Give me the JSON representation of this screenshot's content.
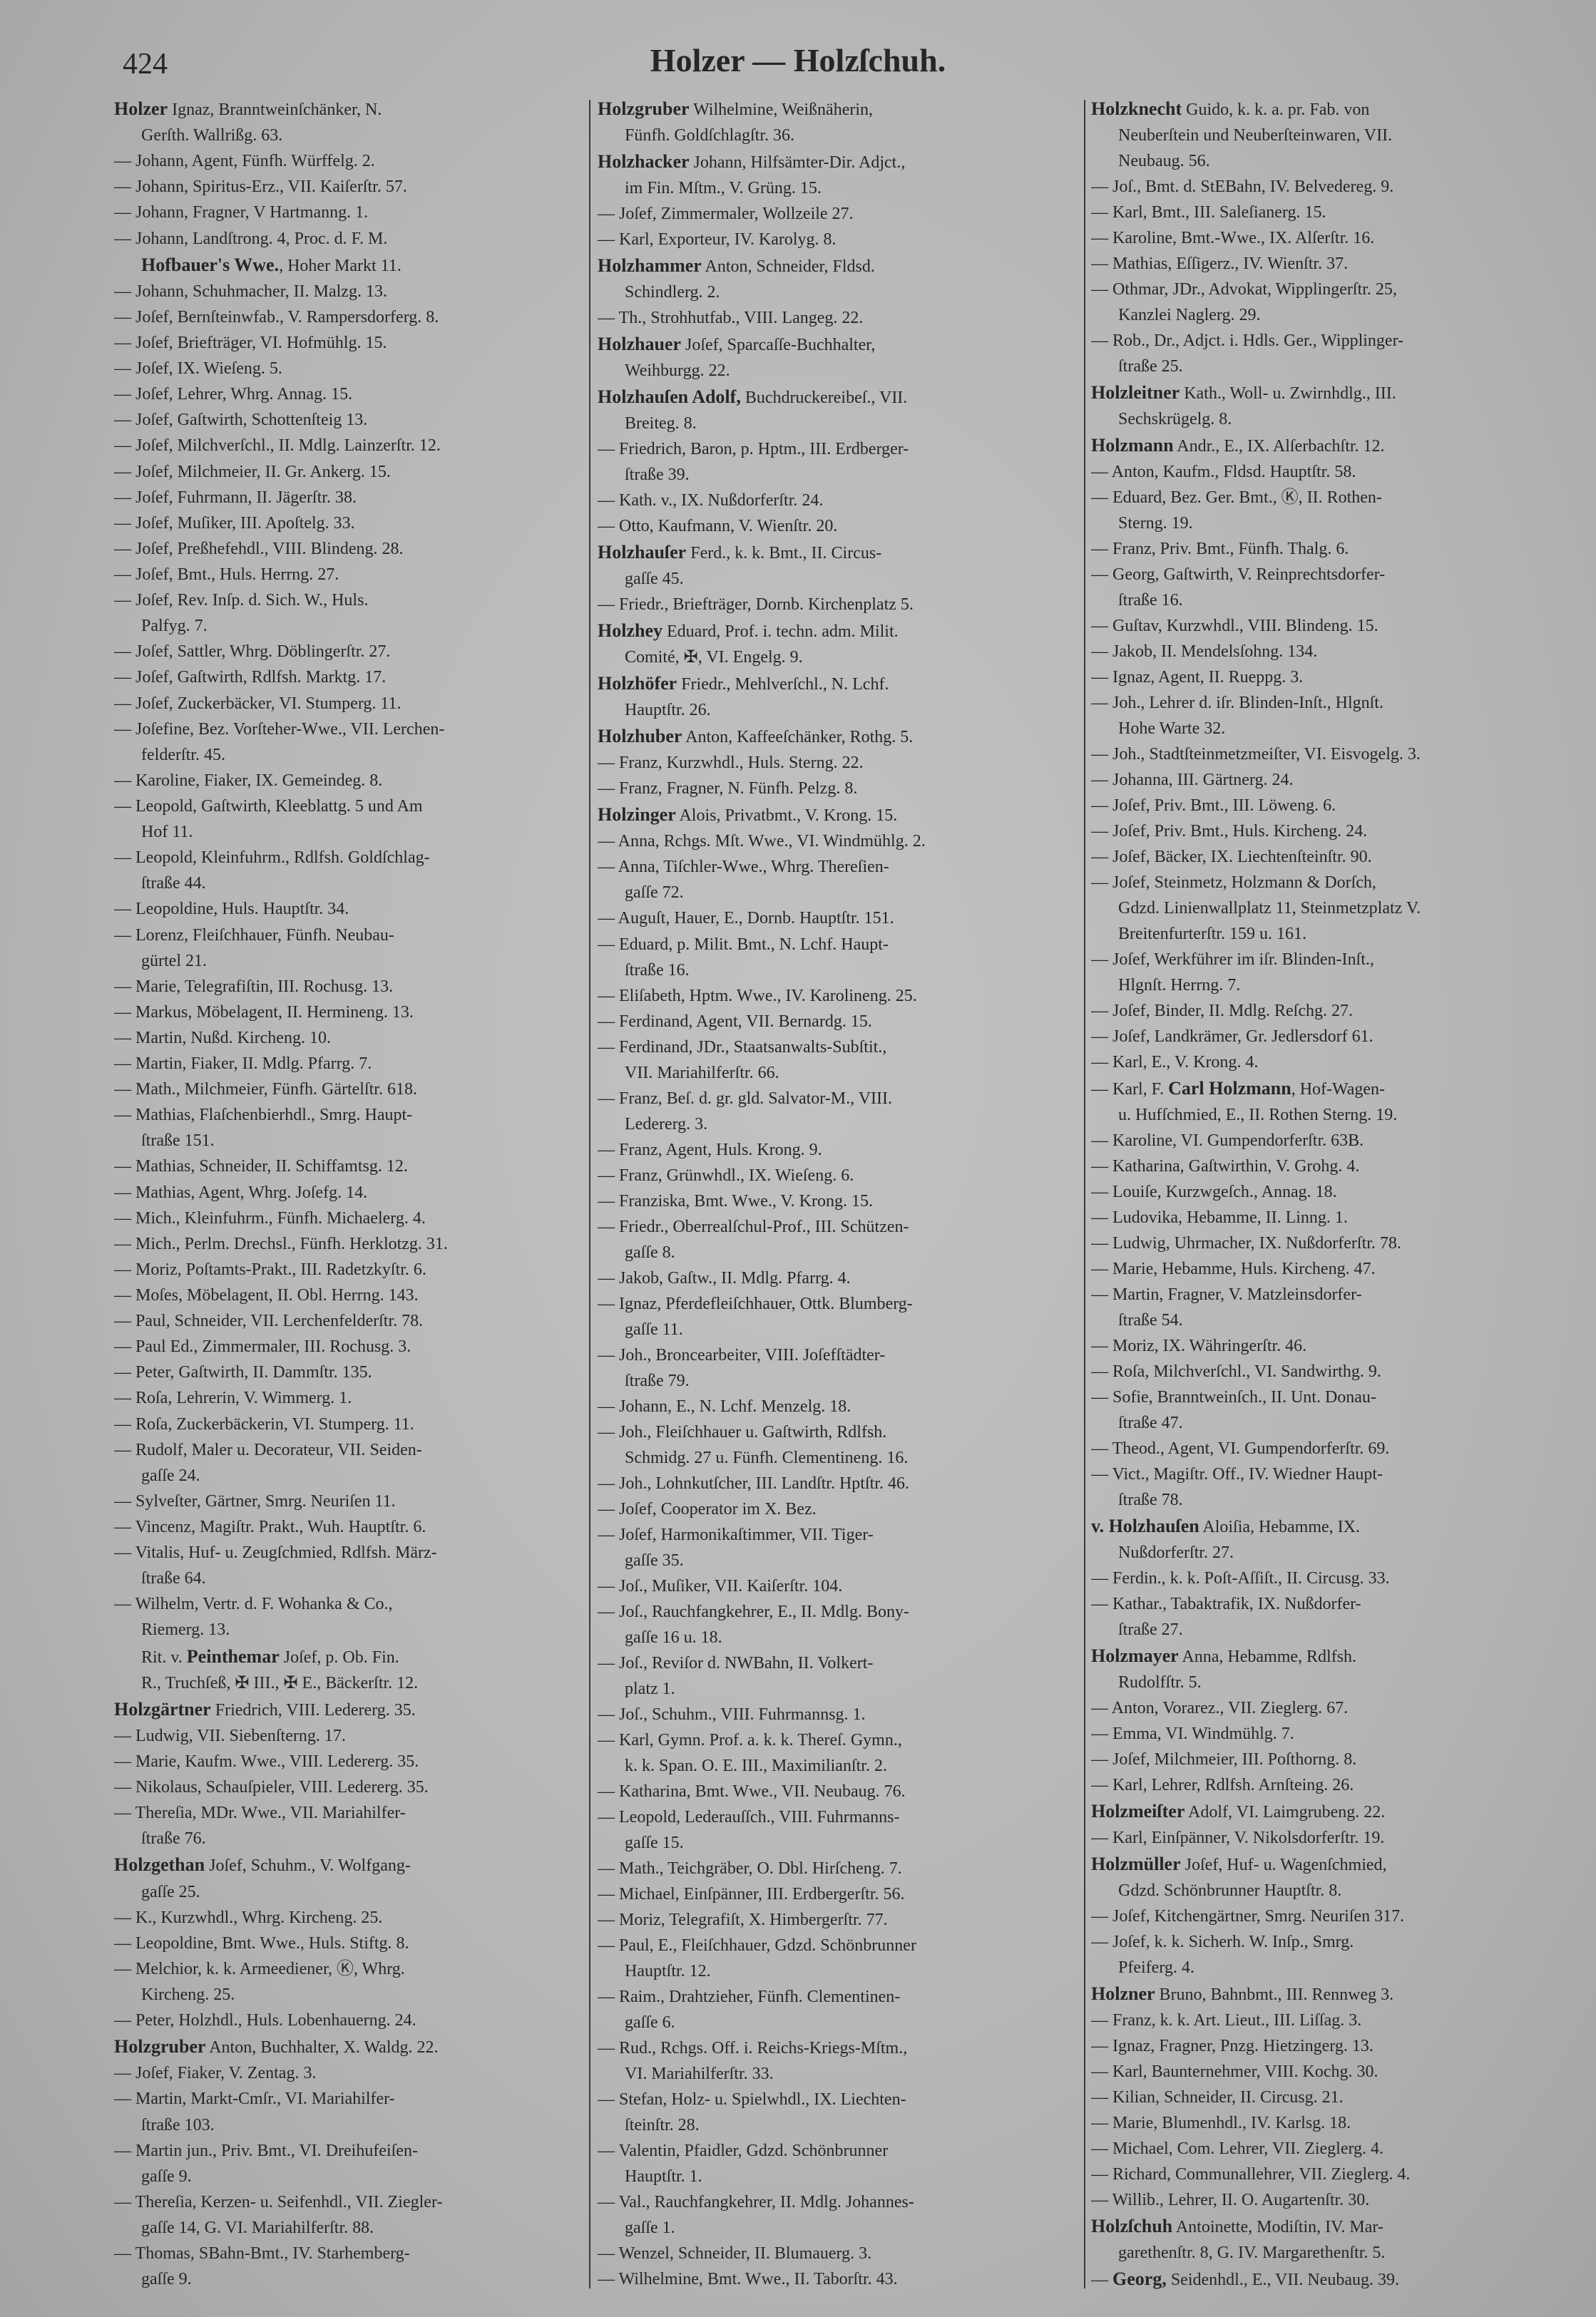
{
  "header": {
    "page_number": "424",
    "title": "Holzer — Holzſchuh."
  },
  "columns": [
    [
      {
        "n": "Holzer",
        "t": " Ignaz, Branntweinſchänker, N."
      },
      "Gerſth. Wallrißg. 63.",
      "— Johann, Agent, Fünfh. Würffelg. 2.",
      "— Johann, Spiritus-Erz., VII. Kaiſerſtr. 57.",
      "— Johann, Fragner, V Hartmanng. 1.",
      "— Johann, Landſtrong. 4, Proc. d. F. M.",
      {
        "n": "Hofbauer's Wwe.",
        "t": ", Hoher Markt 11.",
        "c": true
      },
      "— Johann, Schuhmacher, II. Malzg. 13.",
      "— Joſef, Bernſteinwfab., V. Rampersdorferg. 8.",
      "— Joſef, Briefträger, VI. Hofmühlg. 15.",
      "— Joſef, IX. Wieſeng. 5.",
      "— Joſef, Lehrer, Whrg. Annag. 15.",
      "— Joſef, Gaſtwirth, Schottenſteig 13.",
      "— Joſef, Milchverſchl., II. Mdlg. Lainzerſtr. 12.",
      "— Joſef, Milchmeier, II. Gr. Ankerg. 15.",
      "— Joſef, Fuhrmann, II. Jägerſtr. 38.",
      "— Joſef, Muſiker, III. Apoſtelg. 33.",
      "— Joſef, Preßhefehdl., VIII. Blindeng. 28.",
      "— Joſef, Bmt., Huls. Herrng. 27.",
      "— Joſef, Rev. Inſp. d. Sich. W., Huls.",
      "Palfyg. 7.",
      "— Joſef, Sattler, Whrg. Döblingerſtr. 27.",
      "— Joſef, Gaſtwirth, Rdlfsh. Marktg. 17.",
      "— Joſef, Zuckerbäcker, VI. Stumperg. 11.",
      "— Joſefine, Bez. Vorſteher-Wwe., VII. Lerchen-",
      "felderſtr. 45.",
      "— Karoline, Fiaker, IX. Gemeindeg. 8.",
      "— Leopold, Gaſtwirth, Kleeblattg. 5 und Am",
      "Hof 11.",
      "— Leopold, Kleinfuhrm., Rdlfsh. Goldſchlag-",
      "ſtraße 44.",
      "— Leopoldine, Huls. Hauptſtr. 34.",
      "— Lorenz, Fleiſchhauer, Fünfh. Neubau-",
      "gürtel 21.",
      "— Marie, Telegrafiſtin, III. Rochusg. 13.",
      "— Markus, Möbelagent, II. Hermineng. 13.",
      "— Martin, Nußd. Kircheng. 10.",
      "— Martin, Fiaker, II. Mdlg. Pfarrg. 7.",
      "— Math., Milchmeier, Fünfh. Gärtelſtr. 618.",
      "— Mathias, Flaſchenbierhdl., Smrg. Haupt-",
      "ſtraße 151.",
      "— Mathias, Schneider, II. Schiffamtsg. 12.",
      "— Mathias, Agent, Whrg. Joſefg. 14.",
      "— Mich., Kleinfuhrm., Fünfh. Michaelerg. 4.",
      "— Mich., Perlm. Drechsl., Fünfh. Herklotzg. 31.",
      "— Moriz, Poſtamts-Prakt., III. Radetzkyſtr. 6.",
      "— Moſes, Möbelagent, II. Obl. Herrng. 143.",
      "— Paul, Schneider, VII. Lerchenfelderſtr. 78.",
      "— Paul Ed., Zimmermaler, III. Rochusg. 3.",
      "— Peter, Gaſtwirth, II. Dammſtr. 135.",
      "— Roſa, Lehrerin, V. Wimmerg. 1.",
      "— Roſa, Zuckerbäckerin, VI. Stumperg. 11.",
      "— Rudolf, Maler u. Decorateur, VII. Seiden-",
      "gaſſe 24.",
      "— Sylveſter, Gärtner, Smrg. Neuriſen 11.",
      "— Vincenz, Magiſtr. Prakt., Wuh. Hauptſtr. 6.",
      "— Vitalis, Huf- u. Zeugſchmied, Rdlfsh. März-",
      "ſtraße 64.",
      "— Wilhelm, Vertr. d. F. Wohanka & Co.,",
      "Riemerg. 13.",
      {
        "p": "Rit. v. ",
        "n": "Peinthemar",
        "t": " Joſef, p. Ob. Fin.",
        "c": true
      },
      "R., Truchſeß, ✠ III., ✠ E., Bäckerſtr. 12.",
      {
        "n": "Holzgärtner",
        "t": " Friedrich, VIII. Ledererg. 35."
      },
      "— Ludwig, VII. Siebenſterng. 17.",
      "— Marie, Kaufm. Wwe., VIII. Ledererg. 35.",
      "— Nikolaus, Schauſpieler, VIII. Ledererg. 35.",
      "— Thereſia, MDr. Wwe., VII. Mariahilfer-",
      "ſtraße 76.",
      {
        "n": "Holzgethan",
        "t": " Joſef, Schuhm., V. Wolfgang-"
      },
      "gaſſe 25.",
      "— K., Kurzwhdl., Whrg. Kircheng. 25.",
      "— Leopoldine, Bmt. Wwe., Huls. Stiftg. 8.",
      "— Melchior, k. k. Armeediener, Ⓚ, Whrg.",
      "Kircheng. 25.",
      "— Peter, Holzhdl., Huls. Lobenhauerng. 24.",
      {
        "n": "Holzgruber",
        "t": " Anton, Buchhalter, X. Waldg. 22."
      },
      "— Joſef, Fiaker, V. Zentag. 3.",
      "— Martin, Markt-Cmſr., VI. Mariahilfer-",
      "ſtraße 103.",
      "— Martin jun., Priv. Bmt., VI. Dreihufeiſen-",
      "gaſſe 9.",
      "— Thereſia, Kerzen- u. Seifenhdl., VII. Ziegler-",
      "gaſſe 14, G. VI. Mariahilferſtr. 88.",
      "— Thomas, SBahn-Bmt., IV. Starhemberg-",
      "gaſſe 9."
    ],
    [
      {
        "n": "Holzgruber",
        "t": " Wilhelmine, Weißnäherin,"
      },
      "Fünfh. Goldſchlagſtr. 36.",
      {
        "n": "Holzhacker",
        "t": " Johann, Hilfsämter-Dir. Adjct.,"
      },
      "im Fin. Mſtm., V. Grüng. 15.",
      "— Joſef, Zimmermaler, Wollzeile 27.",
      "— Karl, Exporteur, IV. Karolyg. 8.",
      {
        "n": "Holzhammer",
        "t": " Anton, Schneider, Fldsd."
      },
      "Schindlerg. 2.",
      "— Th., Strohhutfab., VIII. Langeg. 22.",
      {
        "n": "Holzhauer",
        "t": " Joſef, Sparcaſſe-Buchhalter,"
      },
      "Weihburgg. 22.",
      {
        "n": "Holzhauſen Adolf,",
        "t": " Buchdruckereibeſ., VII."
      },
      "Breiteg. 8.",
      "— Friedrich, Baron, p. Hptm., III. Erdberger-",
      "ſtraße 39.",
      "— Kath. v., IX. Nußdorferſtr. 24.",
      "— Otto, Kaufmann, V. Wienſtr. 20.",
      {
        "n": "Holzhauſer",
        "t": " Ferd., k. k. Bmt., II. Circus-"
      },
      "gaſſe 45.",
      "— Friedr., Briefträger, Dornb. Kirchenplatz 5.",
      {
        "n": "Holzhey",
        "t": " Eduard, Prof. i. techn. adm. Milit."
      },
      "Comité, ✠, VI. Engelg. 9.",
      {
        "n": "Holzhöfer",
        "t": " Friedr., Mehlverſchl., N. Lchf."
      },
      "Hauptſtr. 26.",
      {
        "n": "Holzhuber",
        "t": " Anton, Kaffeeſchänker, Rothg. 5."
      },
      "— Franz, Kurzwhdl., Huls. Sterng. 22.",
      "— Franz, Fragner, N. Fünfh. Pelzg. 8.",
      {
        "n": "Holzinger",
        "t": " Alois, Privatbmt., V. Krong. 15."
      },
      "— Anna, Rchgs. Mſt. Wwe., VI. Windmühlg. 2.",
      "— Anna, Tiſchler-Wwe., Whrg. Thereſien-",
      "gaſſe 72.",
      "— Auguſt, Hauer, E., Dornb. Hauptſtr. 151.",
      "— Eduard, p. Milit. Bmt., N. Lchf. Haupt-",
      "ſtraße 16.",
      "— Eliſabeth, Hptm. Wwe., IV. Karolineng. 25.",
      "— Ferdinand, Agent, VII. Bernardg. 15.",
      "— Ferdinand, JDr., Staatsanwalts-Subſtit.,",
      "VII. Mariahilferſtr. 66.",
      "— Franz, Beſ. d. gr. gld. Salvator-M., VIII.",
      "Ledererg. 3.",
      "— Franz, Agent, Huls. Krong. 9.",
      "— Franz, Grünwhdl., IX. Wieſeng. 6.",
      "— Franziska, Bmt. Wwe., V. Krong. 15.",
      "— Friedr., Oberrealſchul-Prof., III. Schützen-",
      "gaſſe 8.",
      "— Jakob, Gaſtw., II. Mdlg. Pfarrg. 4.",
      "— Ignaz, Pferdefleiſchhauer, Ottk. Blumberg-",
      "gaſſe 11.",
      "— Joh., Broncearbeiter, VIII. Joſefſtädter-",
      "ſtraße 79.",
      "— Johann, E., N. Lchf. Menzelg. 18.",
      "— Joh., Fleiſchhauer u. Gaſtwirth, Rdlfsh.",
      "Schmidg. 27 u. Fünfh. Clementineng. 16.",
      "— Joh., Lohnkutſcher, III. Landſtr. Hptſtr. 46.",
      "— Joſef, Cooperator im X. Bez.",
      "— Joſef, Harmonikaſtimmer, VII. Tiger-",
      "gaſſe 35.",
      "— Joſ., Muſiker, VII. Kaiſerſtr. 104.",
      "— Joſ., Rauchfangkehrer, E., II. Mdlg. Bony-",
      "gaſſe 16 u. 18.",
      "— Joſ., Reviſor d. NWBahn, II. Volkert-",
      "platz 1.",
      "— Joſ., Schuhm., VIII. Fuhrmannsg. 1.",
      "— Karl, Gymn. Prof. a. k. k. Thereſ. Gymn.,",
      "k. k. Span. O. E. III., Maximilianſtr. 2.",
      "— Katharina, Bmt. Wwe., VII. Neubaug. 76.",
      "— Leopold, Lederauſſch., VIII. Fuhrmanns-",
      "gaſſe 15.",
      "— Math., Teichgräber, O. Dbl. Hirſcheng. 7.",
      "— Michael, Einſpänner, III. Erdbergerſtr. 56.",
      "— Moriz, Telegrafiſt, X. Himbergerſtr. 77.",
      "— Paul, E., Fleiſchhauer, Gdzd. Schönbrunner",
      "Hauptſtr. 12.",
      "— Raim., Drahtzieher, Fünfh. Clementinen-",
      "gaſſe 6.",
      "— Rud., Rchgs. Off. i. Reichs-Kriegs-Mſtm.,",
      "VI. Mariahilferſtr. 33.",
      "— Stefan, Holz- u. Spielwhdl., IX. Liechten-",
      "ſteinſtr. 28.",
      "— Valentin, Pfaidler, Gdzd. Schönbrunner",
      "Hauptſtr. 1.",
      "— Val., Rauchfangkehrer, II. Mdlg. Johannes-",
      "gaſſe 1.",
      "— Wenzel, Schneider, II. Blumauerg. 3.",
      "— Wilhelmine, Bmt. Wwe., II. Taborſtr. 43."
    ],
    [
      {
        "n": "Holzknecht",
        "t": " Guido, k. k. a. pr. Fab. von"
      },
      "Neuberſtein und Neuberſteinwaren, VII.",
      "Neubaug. 56.",
      "— Joſ., Bmt. d. StEBahn, IV. Belvedereg. 9.",
      "— Karl, Bmt., III. Saleſianerg. 15.",
      "— Karoline, Bmt.-Wwe., IX. Alſerſtr. 16.",
      "— Mathias, Eſſigerz., IV. Wienſtr. 37.",
      "— Othmar, JDr., Advokat, Wipplingerſtr. 25,",
      "Kanzlei Naglerg. 29.",
      "— Rob., Dr., Adjct. i. Hdls. Ger., Wipplinger-",
      "ſtraße 25.",
      {
        "n": "Holzleitner",
        "t": " Kath., Woll- u. Zwirnhdlg., III."
      },
      "Sechskrügelg. 8.",
      {
        "n": "Holzmann",
        "t": " Andr., E., IX. Alſerbachſtr. 12."
      },
      "— Anton, Kaufm., Fldsd. Hauptſtr. 58.",
      "— Eduard, Bez. Ger. Bmt., Ⓚ, II. Rothen-",
      "Sterng. 19.",
      "— Franz, Priv. Bmt., Fünfh. Thalg. 6.",
      "— Georg, Gaſtwirth, V. Reinprechtsdorfer-",
      "ſtraße 16.",
      "— Guſtav, Kurzwhdl., VIII. Blindeng. 15.",
      "— Jakob, II. Mendelsſohng. 134.",
      "— Ignaz, Agent, II. Rueppg. 3.",
      "— Joh., Lehrer d. iſr. Blinden-Inſt., Hlgnſt.",
      "Hohe Warte 32.",
      "— Joh., Stadtſteinmetzmeiſter, VI. Eisvogelg. 3.",
      "— Johanna, III. Gärtnerg. 24.",
      "— Joſef, Priv. Bmt., III. Löweng. 6.",
      "— Joſef, Priv. Bmt., Huls. Kircheng. 24.",
      "— Joſef, Bäcker, IX. Liechtenſteinſtr. 90.",
      "— Joſef, Steinmetz, Holzmann & Dorſch,",
      "Gdzd. Linienwallplatz 11, Steinmetzplatz V.",
      "Breitenfurterſtr. 159 u. 161.",
      "— Joſef, Werkführer im iſr. Blinden-Inſt.,",
      "Hlgnſt. Herrng. 7.",
      "— Joſef, Binder, II. Mdlg. Reſchg. 27.",
      "— Joſef, Landkrämer, Gr. Jedlersdorf 61.",
      "— Karl, E., V. Krong. 4.",
      {
        "p": "— Karl, F. ",
        "n": "Carl Holzmann",
        "t": ", Hof-Wagen-"
      },
      "u. Hufſchmied, E., II. Rothen Sterng. 19.",
      "— Karoline, VI. Gumpendorferſtr. 63B.",
      "— Katharina, Gaſtwirthin, V. Grohg. 4.",
      "— Louiſe, Kurzwgeſch., Annag. 18.",
      "— Ludovika, Hebamme, II. Linng. 1.",
      "— Ludwig, Uhrmacher, IX. Nußdorferſtr. 78.",
      "— Marie, Hebamme, Huls. Kircheng. 47.",
      "— Martin, Fragner, V. Matzleinsdorfer-",
      "ſtraße 54.",
      "— Moriz, IX. Währingerſtr. 46.",
      "— Roſa, Milchverſchl., VI. Sandwirthg. 9.",
      "— Sofie, Branntweinſch., II. Unt. Donau-",
      "ſtraße 47.",
      "— Theod., Agent, VI. Gumpendorferſtr. 69.",
      "— Vict., Magiſtr. Off., IV. Wiedner Haupt-",
      "ſtraße 78.",
      {
        "n": "v. Holzhauſen",
        "t": " Aloiſia, Hebamme, IX."
      },
      "Nußdorferſtr. 27.",
      "— Ferdin., k. k. Poſt-Aſſiſt., II. Circusg. 33.",
      "— Kathar., Tabaktrafik, IX. Nußdorfer-",
      "ſtraße 27.",
      {
        "n": "Holzmayer",
        "t": " Anna, Hebamme, Rdlfsh."
      },
      "Rudolfſtr. 5.",
      "— Anton, Vorarez., VII. Zieglerg. 67.",
      "— Emma, VI. Windmühlg. 7.",
      "— Joſef, Milchmeier, III. Poſthorng. 8.",
      "— Karl, Lehrer, Rdlfsh. Arnſteing. 26.",
      {
        "n": "Holzmeiſter",
        "t": " Adolf, VI. Laimgrubeng. 22."
      },
      "— Karl, Einſpänner, V. Nikolsdorferſtr. 19.",
      {
        "n": "Holzmüller",
        "t": " Joſef, Huf- u. Wagenſchmied,"
      },
      "Gdzd. Schönbrunner Hauptſtr. 8.",
      "— Joſef, Kitchengärtner, Smrg. Neuriſen 317.",
      "— Joſef, k. k. Sicherh. W. Inſp., Smrg.",
      "Pfeiferg. 4.",
      {
        "n": "Holzner",
        "t": " Bruno, Bahnbmt., III. Rennweg 3."
      },
      "— Franz, k. k. Art. Lieut., III. Liſſag. 3.",
      "— Ignaz, Fragner, Pnzg. Hietzingerg. 13.",
      "— Karl, Baunternehmer, VIII. Kochg. 30.",
      "— Kilian, Schneider, II. Circusg. 21.",
      "— Marie, Blumenhdl., IV. Karlsg. 18.",
      "— Michael, Com. Lehrer, VII. Zieglerg. 4.",
      "— Richard, Communallehrer, VII. Zieglerg. 4.",
      "— Willib., Lehrer, II. O. Augartenſtr. 30.",
      {
        "n": "Holzſchuh",
        "t": " Antoinette, Modiſtin, IV. Mar-"
      },
      "garethenſtr. 8, G. IV. Margarethenſtr. 5.",
      {
        "p": "— ",
        "n": "Georg,",
        "t": " Seidenhdl., E., VII. Neubaug. 39."
      }
    ]
  ]
}
